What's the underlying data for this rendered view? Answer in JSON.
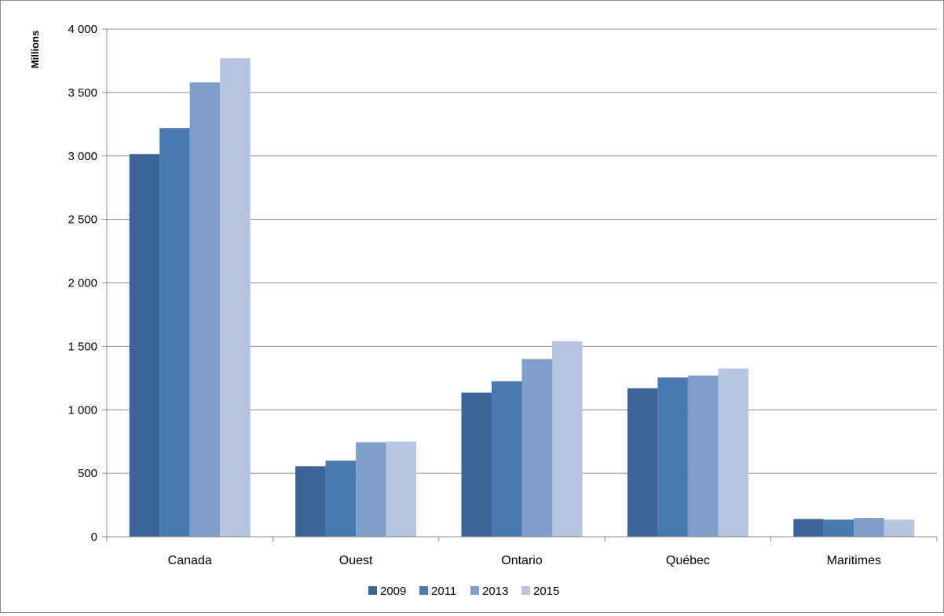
{
  "chart_data": {
    "type": "bar",
    "title": "",
    "xlabel": "",
    "ylabel": "Millions",
    "ylim": [
      0,
      4000
    ],
    "yticks": [
      0,
      500,
      1000,
      1500,
      2000,
      2500,
      3000,
      3500,
      4000
    ],
    "ytick_labels": [
      "0",
      "500",
      "1 000",
      "1 500",
      "2 000",
      "2 500",
      "3 000",
      "3 500",
      "4 000"
    ],
    "categories": [
      "Canada",
      "Ouest",
      "Ontario",
      "Québec",
      "Maritimes"
    ],
    "series": [
      {
        "name": "2009",
        "color": "#3c6496",
        "values": [
          3015,
          555,
          1135,
          1170,
          140
        ]
      },
      {
        "name": "2011",
        "color": "#4a78b0",
        "values": [
          3220,
          600,
          1225,
          1255,
          135
        ]
      },
      {
        "name": "2013",
        "color": "#7f9ec9",
        "values": [
          3580,
          745,
          1400,
          1270,
          148
        ]
      },
      {
        "name": "2015",
        "color": "#b5c5df",
        "values": [
          3770,
          750,
          1540,
          1325,
          135
        ]
      }
    ],
    "grid": true,
    "legend_position": "bottom"
  }
}
